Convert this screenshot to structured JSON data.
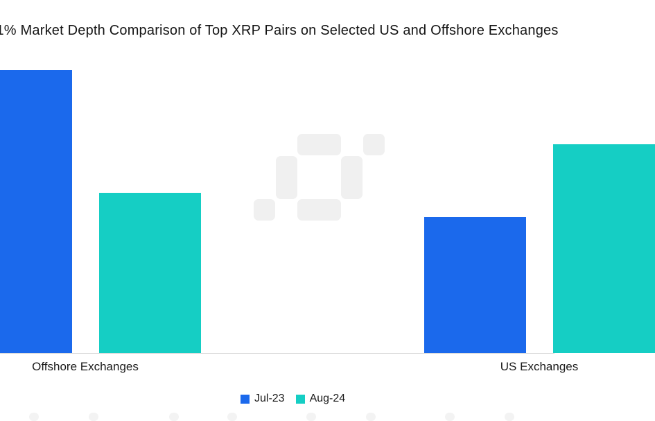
{
  "chart_data": {
    "type": "bar",
    "title": "1% Market Depth Comparison of Top XRP Pairs on Selected US and Offshore Exchanges",
    "categories": [
      "Offshore Exchanges",
      "US Exchanges"
    ],
    "series": [
      {
        "name": "Jul-23",
        "color": "#1b69ec",
        "values": [
          100,
          48
        ]
      },
      {
        "name": "Aug-24",
        "color": "#15cec4",
        "values": [
          56.6,
          73.8
        ]
      }
    ],
    "xlabel": "",
    "ylabel": "",
    "ylim": [
      0,
      100
    ],
    "grid": false,
    "y_axis_visible": false,
    "legend_position": "bottom",
    "note": "values are relative bar heights; no y-axis scale shown in image"
  },
  "watermark": {
    "icon": "coindesk-pixel-logo",
    "color": "#f0f0f0"
  },
  "colors": {
    "background": "#ffffff",
    "title_text": "#141414",
    "label_text": "#1a1a1a",
    "axis_line": "#d9d9d9",
    "series_jul23": "#1b69ec",
    "series_aug24": "#15cec4"
  }
}
